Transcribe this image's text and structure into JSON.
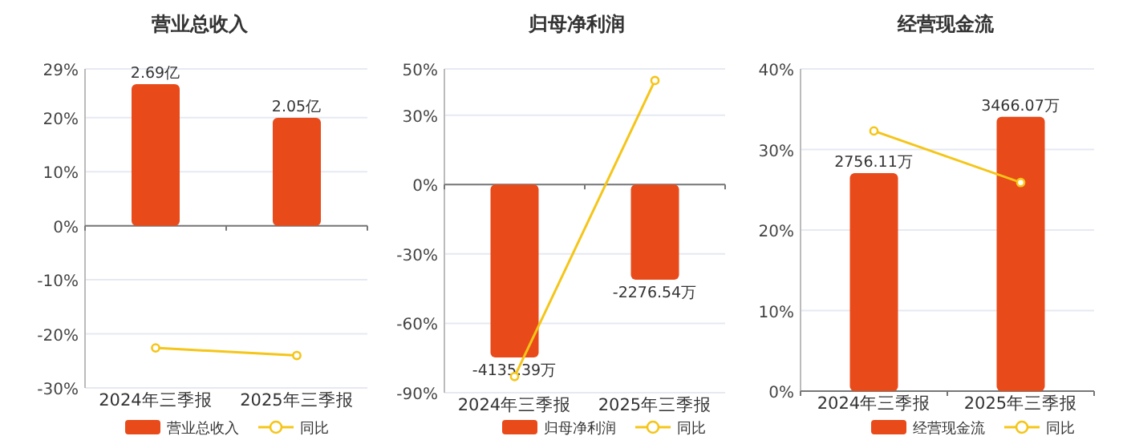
{
  "chart_data": [
    {
      "type": "bar",
      "title": "营业总收入",
      "categories": [
        "2024年三季报",
        "2025年三季报"
      ],
      "ylim": [
        -30,
        29
      ],
      "yticks": [
        {
          "value": -30,
          "label": "-30%"
        },
        {
          "value": -20,
          "label": "-20%"
        },
        {
          "value": -10,
          "label": "-10%"
        },
        {
          "value": 0,
          "label": "0%"
        },
        {
          "value": 10,
          "label": "10%"
        },
        {
          "value": 20,
          "label": "20%"
        },
        {
          "value": 29,
          "label": "29%"
        }
      ],
      "y2lim": [
        -3.08,
        2.98
      ],
      "grid": "y",
      "legend": "bottom",
      "marker": "circle",
      "series": [
        {
          "name": "营业总收入",
          "axis": "y2",
          "color": "#e84a1a",
          "values": [
            2.69,
            2.05
          ],
          "value_labels": [
            "2.69亿",
            "2.05亿"
          ]
        },
        {
          "name": "同比",
          "type": "line",
          "color": "#f5c518",
          "values": [
            -22.6,
            -24.0
          ]
        }
      ]
    },
    {
      "type": "bar",
      "title": "归母净利润",
      "categories": [
        "2024年三季报",
        "2025年三季报"
      ],
      "ylim": [
        -90,
        50
      ],
      "yticks": [
        {
          "value": -90,
          "label": "-90%"
        },
        {
          "value": -60,
          "label": "-60%"
        },
        {
          "value": -30,
          "label": "-30%"
        },
        {
          "value": 0,
          "label": "0%"
        },
        {
          "value": 30,
          "label": "30%"
        },
        {
          "value": 50,
          "label": "50%"
        }
      ],
      "y2lim": [
        -4977,
        2765
      ],
      "grid": "y",
      "legend": "bottom",
      "marker": "circle",
      "series": [
        {
          "name": "归母净利润",
          "axis": "y2",
          "color": "#e84a1a",
          "values": [
            -4135.39,
            -2276.54
          ],
          "value_labels": [
            "-4135.39万",
            "-2276.54万"
          ]
        },
        {
          "name": "同比",
          "type": "line",
          "color": "#f5c518",
          "values": [
            -83,
            45
          ]
        }
      ]
    },
    {
      "type": "bar",
      "title": "经营现金流",
      "categories": [
        "2024年三季报",
        "2025年三季报"
      ],
      "ylim": [
        0,
        40
      ],
      "yticks": [
        {
          "value": 0,
          "label": "0%"
        },
        {
          "value": 10,
          "label": "10%"
        },
        {
          "value": 20,
          "label": "20%"
        },
        {
          "value": 30,
          "label": "30%"
        },
        {
          "value": 40,
          "label": "40%"
        }
      ],
      "y2lim": [
        0,
        4072
      ],
      "grid": "y",
      "legend": "bottom",
      "marker": "circle",
      "series": [
        {
          "name": "经营现金流",
          "axis": "y2",
          "color": "#e84a1a",
          "values": [
            2756.11,
            3466.07
          ],
          "value_labels": [
            "2756.11万",
            "3466.07万"
          ]
        },
        {
          "name": "同比",
          "type": "line",
          "color": "#f5c518",
          "values": [
            32.3,
            25.9
          ]
        }
      ]
    }
  ]
}
